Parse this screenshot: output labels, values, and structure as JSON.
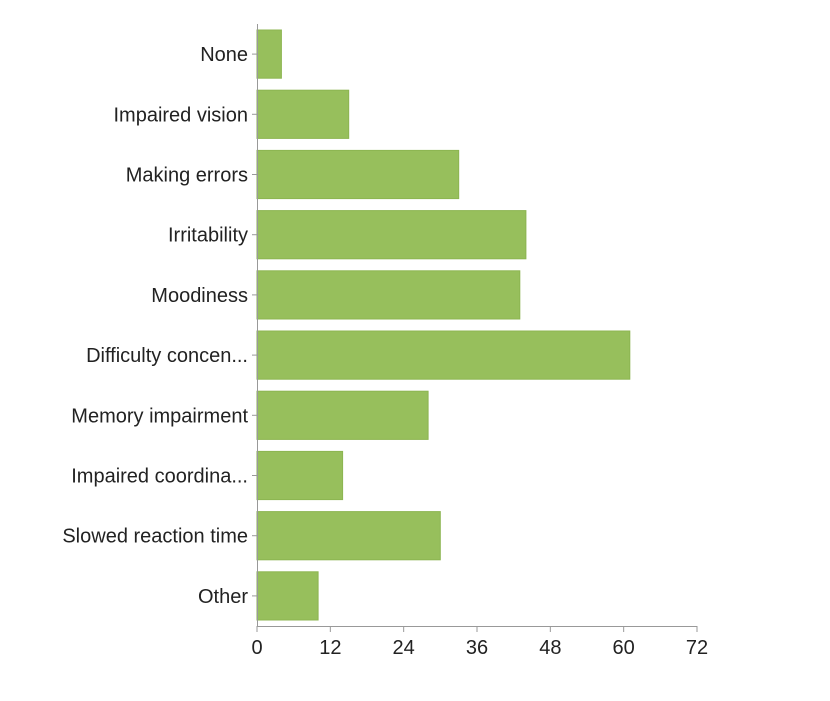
{
  "chart_data": {
    "type": "bar",
    "orientation": "horizontal",
    "title": "",
    "xlabel": "",
    "ylabel": "",
    "categories": [
      "None",
      "Impaired vision",
      "Making errors",
      "Irritability",
      "Moodiness",
      "Difficulty concen...",
      "Memory impairment",
      "Impaired coordina...",
      "Slowed reaction time",
      "Other"
    ],
    "values": [
      4,
      15,
      33,
      44,
      43,
      61,
      28,
      14,
      30,
      10
    ],
    "xlim": [
      0,
      72
    ],
    "xticks": [
      0,
      12,
      24,
      36,
      48,
      60,
      72
    ],
    "grid": false,
    "legend": "none",
    "colors": {
      "bar": "#97bf5c",
      "bar_edge": "#8cb551",
      "axis": "#999999",
      "text": "#222222"
    }
  }
}
